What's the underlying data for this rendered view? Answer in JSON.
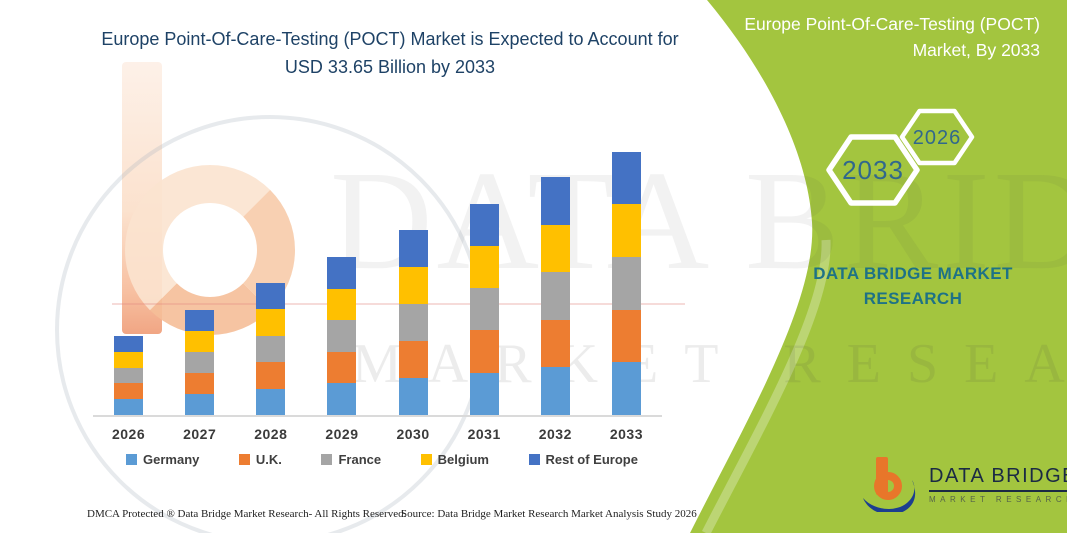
{
  "header": {
    "chart_title": "Europe Point-Of-Care-Testing (POCT) Market is Expected to Account for USD 33.65 Billion by 2033"
  },
  "right_panel": {
    "title": "Europe Point-Of-Care-Testing (POCT) Market, By 2033",
    "badge_start_year": "2026",
    "badge_end_year": "2033",
    "brand_name": "DATA BRIDGE MARKET RESEARCH",
    "panel_color": "#A3C53F"
  },
  "logo": {
    "name": "DATA BRIDGE",
    "tagline": "MARKET RESEARCH"
  },
  "watermark": {
    "line1": "DATA BRIDGE",
    "line2": "MARKET RESEARCH"
  },
  "footer": {
    "left": "DMCA Protected ® Data Bridge Market Research-  All Rights Reserved.",
    "source": "Source: Data Bridge Market Research  Market Analysis Study 2026"
  },
  "chart_data": {
    "type": "bar",
    "stacked": true,
    "title": "Europe Point-Of-Care-Testing (POCT) Market is Expected to Account for USD 33.65 Billion by 2033",
    "unit": "USD Billion",
    "categories": [
      "2026",
      "2027",
      "2028",
      "2029",
      "2030",
      "2031",
      "2032",
      "2033"
    ],
    "series": [
      {
        "name": "Germany",
        "color": "#5B9BD5",
        "values": [
          2.02,
          2.68,
          3.37,
          4.04,
          4.73,
          5.4,
          6.08,
          6.73
        ]
      },
      {
        "name": "U.K.",
        "color": "#ED7D31",
        "values": [
          2.02,
          2.68,
          3.37,
          4.04,
          4.73,
          5.4,
          6.08,
          6.73
        ]
      },
      {
        "name": "France",
        "color": "#A5A5A5",
        "values": [
          2.02,
          2.68,
          3.37,
          4.04,
          4.73,
          5.4,
          6.08,
          6.73
        ]
      },
      {
        "name": "Belgium",
        "color": "#FFC000",
        "values": [
          2.02,
          2.68,
          3.37,
          4.04,
          4.73,
          5.4,
          6.08,
          6.73
        ]
      },
      {
        "name": "Rest of Europe",
        "color": "#4472C4",
        "values": [
          2.02,
          2.68,
          3.37,
          4.04,
          4.73,
          5.4,
          6.08,
          6.73
        ]
      }
    ],
    "totals": [
      10.1,
      13.4,
      16.85,
      20.2,
      23.65,
      27.0,
      30.4,
      33.65
    ],
    "ylim": [
      0,
      35
    ],
    "grid": false,
    "y_axis_visible": false,
    "legend_position": "bottom",
    "annotation": "USD 33.65 Billion by 2033"
  }
}
